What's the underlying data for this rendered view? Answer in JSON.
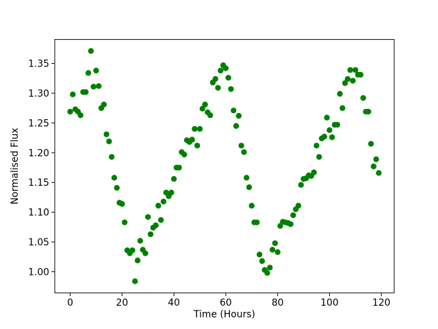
{
  "chart_data": {
    "type": "scatter",
    "x_label": "Time (Hours)",
    "y_label": "Normalised Flux",
    "color": "#008000",
    "xlim": [
      -5.95,
      124.95
    ],
    "ylim": [
      0.9646,
      1.3903
    ],
    "xticks": [
      0,
      20,
      40,
      60,
      80,
      100,
      120
    ],
    "yticks": [
      {
        "value": 1.0,
        "label": "1.00"
      },
      1.05,
      {
        "value": 1.1,
        "label": "1.10"
      },
      1.15,
      {
        "value": 1.2,
        "label": "1.20"
      },
      1.25,
      {
        "value": 1.3,
        "label": "1.30"
      },
      1.35
    ],
    "x": [
      0,
      1,
      2,
      3,
      4,
      5,
      6,
      7,
      8,
      9,
      10,
      11,
      12,
      13,
      14,
      15,
      16,
      17,
      18,
      19,
      20,
      21,
      22,
      23,
      24,
      25,
      26,
      27,
      28,
      29,
      30,
      31,
      32,
      33,
      34,
      35,
      36,
      37,
      38,
      39,
      40,
      41,
      42,
      43,
      44,
      45,
      46,
      47,
      48,
      49,
      50,
      51,
      52,
      53,
      54,
      55,
      56,
      57,
      58,
      59,
      60,
      61,
      62,
      63,
      64,
      65,
      66,
      67,
      68,
      69,
      70,
      71,
      72,
      73,
      74,
      75,
      76,
      77,
      78,
      79,
      80,
      81,
      82,
      83,
      84,
      85,
      86,
      87,
      88,
      89,
      90,
      91,
      92,
      93,
      94,
      95,
      96,
      97,
      98,
      99,
      100,
      101,
      102,
      103,
      104,
      105,
      106,
      107,
      108,
      109,
      110,
      111,
      112,
      113,
      114,
      115,
      116,
      117,
      118,
      119
    ],
    "values": [
      1.269,
      1.298,
      1.273,
      1.269,
      1.263,
      1.302,
      1.302,
      1.334,
      1.371,
      1.311,
      1.338,
      1.312,
      1.275,
      1.281,
      1.231,
      1.219,
      1.193,
      1.158,
      1.141,
      1.116,
      1.114,
      1.083,
      1.036,
      1.031,
      1.036,
      0.984,
      1.019,
      1.052,
      1.037,
      1.031,
      1.092,
      1.063,
      1.074,
      1.078,
      1.111,
      1.087,
      1.118,
      1.133,
      1.127,
      1.133,
      1.156,
      1.175,
      1.175,
      1.201,
      1.197,
      1.221,
      1.218,
      1.222,
      1.24,
      1.212,
      1.24,
      1.274,
      1.281,
      1.268,
      1.263,
      1.318,
      1.324,
      1.309,
      1.338,
      1.347,
      1.342,
      1.326,
      1.307,
      1.271,
      1.245,
      1.262,
      1.212,
      1.201,
      1.158,
      1.142,
      1.111,
      1.083,
      1.083,
      1.029,
      1.018,
      1.003,
      0.998,
      1.007,
      1.037,
      1.048,
      1.033,
      1.077,
      1.084,
      1.083,
      1.082,
      1.08,
      1.095,
      1.105,
      1.111,
      1.146,
      1.156,
      1.157,
      1.162,
      1.161,
      1.167,
      1.212,
      1.193,
      1.224,
      1.227,
      1.259,
      1.238,
      1.226,
      1.247,
      1.247,
      1.299,
      1.275,
      1.317,
      1.324,
      1.339,
      1.321,
      1.339,
      1.331,
      1.331,
      1.292,
      1.269,
      1.269,
      1.215,
      1.177,
      1.189,
      1.166
    ]
  }
}
